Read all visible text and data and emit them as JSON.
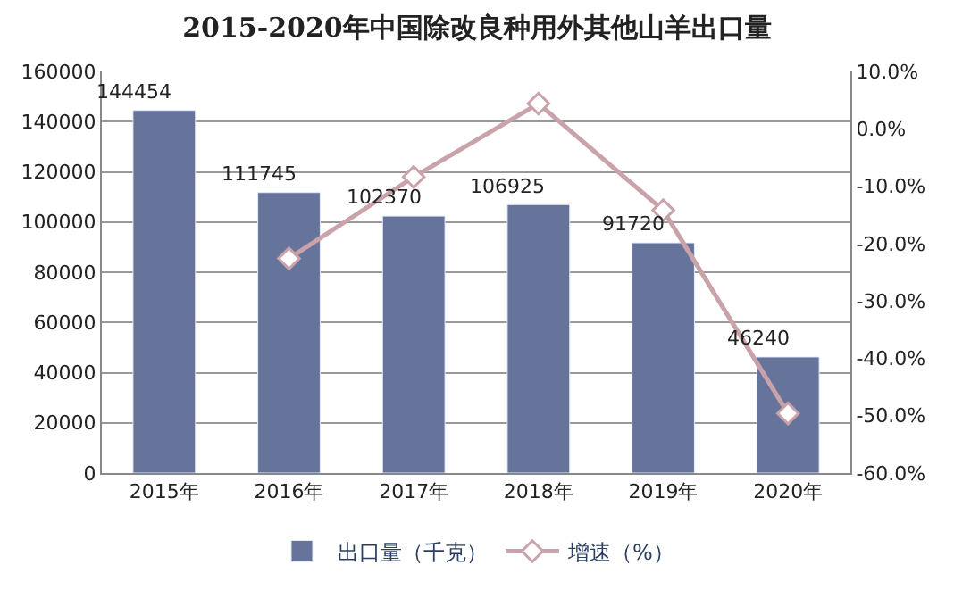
{
  "chart_data": {
    "type": "bar",
    "title": "2015-2020年中国除改良种用外其他山羊出口量",
    "categories": [
      "2015年",
      "2016年",
      "2017年",
      "2018年",
      "2019年",
      "2020年"
    ],
    "series": [
      {
        "name": "出口量（千克）",
        "color": "#66739b",
        "values": [
          144454,
          111745,
          102370,
          106925,
          91720,
          46240
        ],
        "value_labels": [
          "144454",
          "111745",
          "102370",
          "106925",
          "91720",
          "46240"
        ]
      },
      {
        "name": "增速（%）",
        "type": "line",
        "axis": "y2",
        "color": "#c9a2aa",
        "marker": "diamond",
        "values": [
          null,
          -22.6,
          -8.4,
          4.4,
          -14.2,
          -49.6
        ]
      }
    ],
    "ylim": [
      0,
      160000
    ],
    "yticks": [
      0,
      20000,
      40000,
      60000,
      80000,
      100000,
      120000,
      140000,
      160000
    ],
    "y2lim": [
      -60,
      10
    ],
    "y2ticks": [
      {
        "value": -60,
        "label": "-60.0%"
      },
      {
        "value": -50,
        "label": "-50.0%"
      },
      {
        "value": -40,
        "label": "-40.0%"
      },
      {
        "value": -30,
        "label": "-30.0%"
      },
      {
        "value": -20,
        "label": "-20.0%"
      },
      {
        "value": -10,
        "label": "-10.0%"
      },
      {
        "value": 0,
        "label": "0.0%"
      },
      {
        "value": 10,
        "label": "10.0%"
      }
    ],
    "grid": "y",
    "legend": "bottom"
  }
}
